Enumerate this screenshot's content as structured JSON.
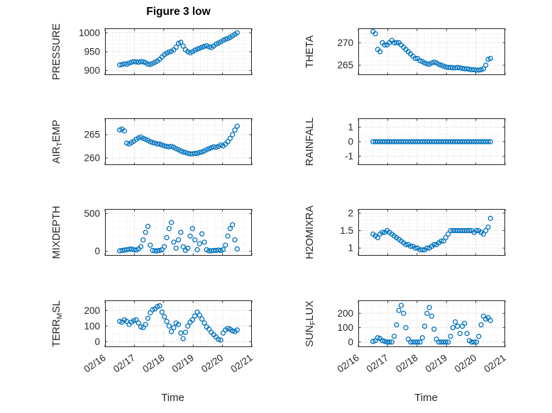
{
  "chart_data": {
    "type": "scatter",
    "title": "Figure 3 low",
    "xlabel": "Time",
    "x_tick_labels": [
      "02/16",
      "02/17",
      "02/18",
      "02/19",
      "02/20",
      "02/21"
    ],
    "x_range_days": [
      0,
      5
    ],
    "marker": "open-circle",
    "legend": "none",
    "grid": "on-with-minor-dotted",
    "colors": {
      "marker": "#0072bd",
      "axes": "#262626",
      "grid_major": "#c6c6c6",
      "grid_minor": "#e4e4e4",
      "background": "#ffffff"
    },
    "x": [
      0.5,
      0.58,
      0.66,
      0.74,
      0.82,
      0.9,
      0.98,
      1.06,
      1.14,
      1.22,
      1.3,
      1.38,
      1.46,
      1.54,
      1.62,
      1.7,
      1.78,
      1.86,
      1.94,
      2.02,
      2.1,
      2.18,
      2.26,
      2.34,
      2.42,
      2.5,
      2.58,
      2.66,
      2.74,
      2.82,
      2.9,
      2.98,
      3.06,
      3.14,
      3.22,
      3.3,
      3.38,
      3.46,
      3.54,
      3.62,
      3.7,
      3.78,
      3.86,
      3.94,
      4.02,
      4.1,
      4.18,
      4.26,
      4.34,
      4.42,
      4.5
    ],
    "subplots": [
      {
        "name": "PRESSURE",
        "ylabel": "PRESSURE",
        "ylabel_segments": [
          {
            "t": "PRESSURE"
          }
        ],
        "ylim": [
          888,
          1012
        ],
        "yticks": [
          900,
          950,
          1000
        ],
        "yminor": 10,
        "values": [
          915,
          916,
          918,
          917,
          920,
          922,
          924,
          923,
          922,
          924,
          923,
          921,
          917,
          916,
          919,
          922,
          925,
          930,
          936,
          942,
          946,
          949,
          951,
          955,
          962,
          972,
          975,
          965,
          955,
          950,
          947,
          950,
          954,
          957,
          959,
          962,
          964,
          966,
          963,
          961,
          965,
          970,
          973,
          976,
          980,
          983,
          985,
          988,
          992,
          996,
          1000
        ]
      },
      {
        "name": "THETA",
        "ylabel": "THETA",
        "ylabel_segments": [
          {
            "t": "THETA"
          }
        ],
        "ylim": [
          262.8,
          273.2
        ],
        "yticks": [
          265,
          270
        ],
        "yminor": 1,
        "values": [
          272.5,
          272,
          268.5,
          268,
          270,
          269.5,
          269.5,
          270,
          270.5,
          270,
          270,
          270,
          269.5,
          269,
          268.5,
          268,
          267.5,
          267,
          266.5,
          266.5,
          266,
          265.8,
          265.5,
          265.3,
          265.2,
          265.5,
          265.7,
          265.5,
          265.2,
          265,
          264.8,
          264.6,
          264.5,
          264.5,
          264.4,
          264.4,
          264.5,
          264.4,
          264.3,
          264.2,
          264.2,
          264.1,
          264,
          264,
          263.9,
          263.9,
          264,
          264.2,
          265,
          266.3,
          266.5
        ]
      },
      {
        "name": "AIR_TEMP",
        "ylabel": "AIR_TEMP",
        "ylabel_segments": [
          {
            "t": "AIR"
          },
          {
            "t": "T",
            "sub": true
          },
          {
            "t": "EMP"
          }
        ],
        "ylim": [
          258.5,
          268.5
        ],
        "yticks": [
          260,
          265
        ],
        "yminor": 1,
        "values": [
          266,
          266.2,
          265.8,
          263.2,
          263,
          263.3,
          263.6,
          264,
          264.3,
          264.5,
          264.2,
          264,
          263.8,
          263.5,
          263.3,
          263.2,
          263,
          263,
          262.8,
          262.6,
          262.5,
          262.4,
          262.5,
          262.3,
          262,
          261.8,
          261.5,
          261.3,
          261.2,
          261,
          260.9,
          260.9,
          261,
          261,
          261.2,
          261.3,
          261.5,
          261.8,
          262,
          262.2,
          262.4,
          262.3,
          262.5,
          262.8,
          262.6,
          263,
          263.5,
          264.2,
          265,
          266,
          266.8
        ]
      },
      {
        "name": "RAINFALL",
        "ylabel": "RAINFALL",
        "ylabel_segments": [
          {
            "t": "RAINFALL"
          }
        ],
        "ylim": [
          -1.6,
          1.6
        ],
        "yticks": [
          -1,
          0,
          1
        ],
        "yminor": 0.5,
        "values": [
          0,
          0,
          0,
          0,
          0,
          0,
          0,
          0,
          0,
          0,
          0,
          0,
          0,
          0,
          0,
          0,
          0,
          0,
          0,
          0,
          0,
          0,
          0,
          0,
          0,
          0,
          0,
          0,
          0,
          0,
          0,
          0,
          0,
          0,
          0,
          0,
          0,
          0,
          0,
          0,
          0,
          0,
          0,
          0,
          0,
          0,
          0,
          0,
          0,
          0,
          0
        ]
      },
      {
        "name": "MIXDEPTH",
        "ylabel": "MIXDEPTH",
        "ylabel_segments": [
          {
            "t": "MIXDEPTH"
          }
        ],
        "ylim": [
          -60,
          560
        ],
        "yticks": [
          0,
          500
        ],
        "yminor": 100,
        "values": [
          5,
          10,
          15,
          20,
          25,
          30,
          20,
          15,
          30,
          60,
          150,
          250,
          330,
          80,
          10,
          5,
          5,
          10,
          20,
          60,
          180,
          300,
          380,
          120,
          40,
          150,
          250,
          60,
          10,
          40,
          200,
          300,
          150,
          20,
          100,
          230,
          120,
          20,
          5,
          5,
          10,
          10,
          15,
          10,
          20,
          80,
          200,
          300,
          350,
          150,
          30
        ]
      },
      {
        "name": "H2OMIXRA",
        "ylabel": "H2OMIXRA",
        "ylabel_segments": [
          {
            "t": "H2OMIXRA"
          }
        ],
        "ylim": [
          0.78,
          2.12
        ],
        "yticks": [
          1,
          1.5,
          2
        ],
        "yminor": 0.1,
        "values": [
          1.4,
          1.35,
          1.3,
          1.4,
          1.45,
          1.45,
          1.5,
          1.45,
          1.4,
          1.35,
          1.3,
          1.25,
          1.2,
          1.15,
          1.1,
          1.1,
          1.05,
          1.05,
          1,
          1,
          0.95,
          0.95,
          0.95,
          1,
          1,
          1.05,
          1.1,
          1.1,
          1.15,
          1.2,
          1.2,
          1.3,
          1.4,
          1.5,
          1.5,
          1.5,
          1.5,
          1.5,
          1.5,
          1.5,
          1.5,
          1.5,
          1.5,
          1.45,
          1.5,
          1.5,
          1.45,
          1.4,
          1.5,
          1.6,
          1.85
        ]
      },
      {
        "name": "TERR_MSL",
        "ylabel": "TERR_MSL",
        "ylabel_segments": [
          {
            "t": "TERR"
          },
          {
            "t": "M",
            "sub": true
          },
          {
            "t": "SL"
          }
        ],
        "ylim": [
          -35,
          265
        ],
        "yticks": [
          0,
          100,
          200
        ],
        "yminor": 50,
        "values": [
          130,
          125,
          140,
          130,
          110,
          125,
          135,
          140,
          120,
          95,
          90,
          110,
          150,
          185,
          205,
          210,
          225,
          230,
          190,
          160,
          130,
          100,
          65,
          90,
          120,
          110,
          55,
          20,
          60,
          100,
          125,
          140,
          165,
          190,
          170,
          145,
          120,
          95,
          80,
          60,
          45,
          30,
          15,
          10,
          55,
          75,
          85,
          80,
          70,
          65,
          75
        ]
      },
      {
        "name": "SUN_FLUX",
        "ylabel": "SUN_FLUX",
        "ylabel_segments": [
          {
            "t": "SUN"
          },
          {
            "t": "F",
            "sub": true
          },
          {
            "t": "LUX"
          }
        ],
        "ylim": [
          -35,
          290
        ],
        "yticks": [
          0,
          100,
          200
        ],
        "yminor": 50,
        "values": [
          5,
          10,
          30,
          25,
          10,
          5,
          0,
          0,
          0,
          40,
          120,
          220,
          255,
          200,
          100,
          20,
          0,
          0,
          0,
          0,
          0,
          30,
          110,
          200,
          240,
          180,
          90,
          20,
          0,
          0,
          0,
          0,
          0,
          40,
          100,
          140,
          110,
          60,
          110,
          130,
          60,
          10,
          0,
          0,
          0,
          40,
          120,
          180,
          160,
          170,
          150
        ]
      }
    ]
  }
}
